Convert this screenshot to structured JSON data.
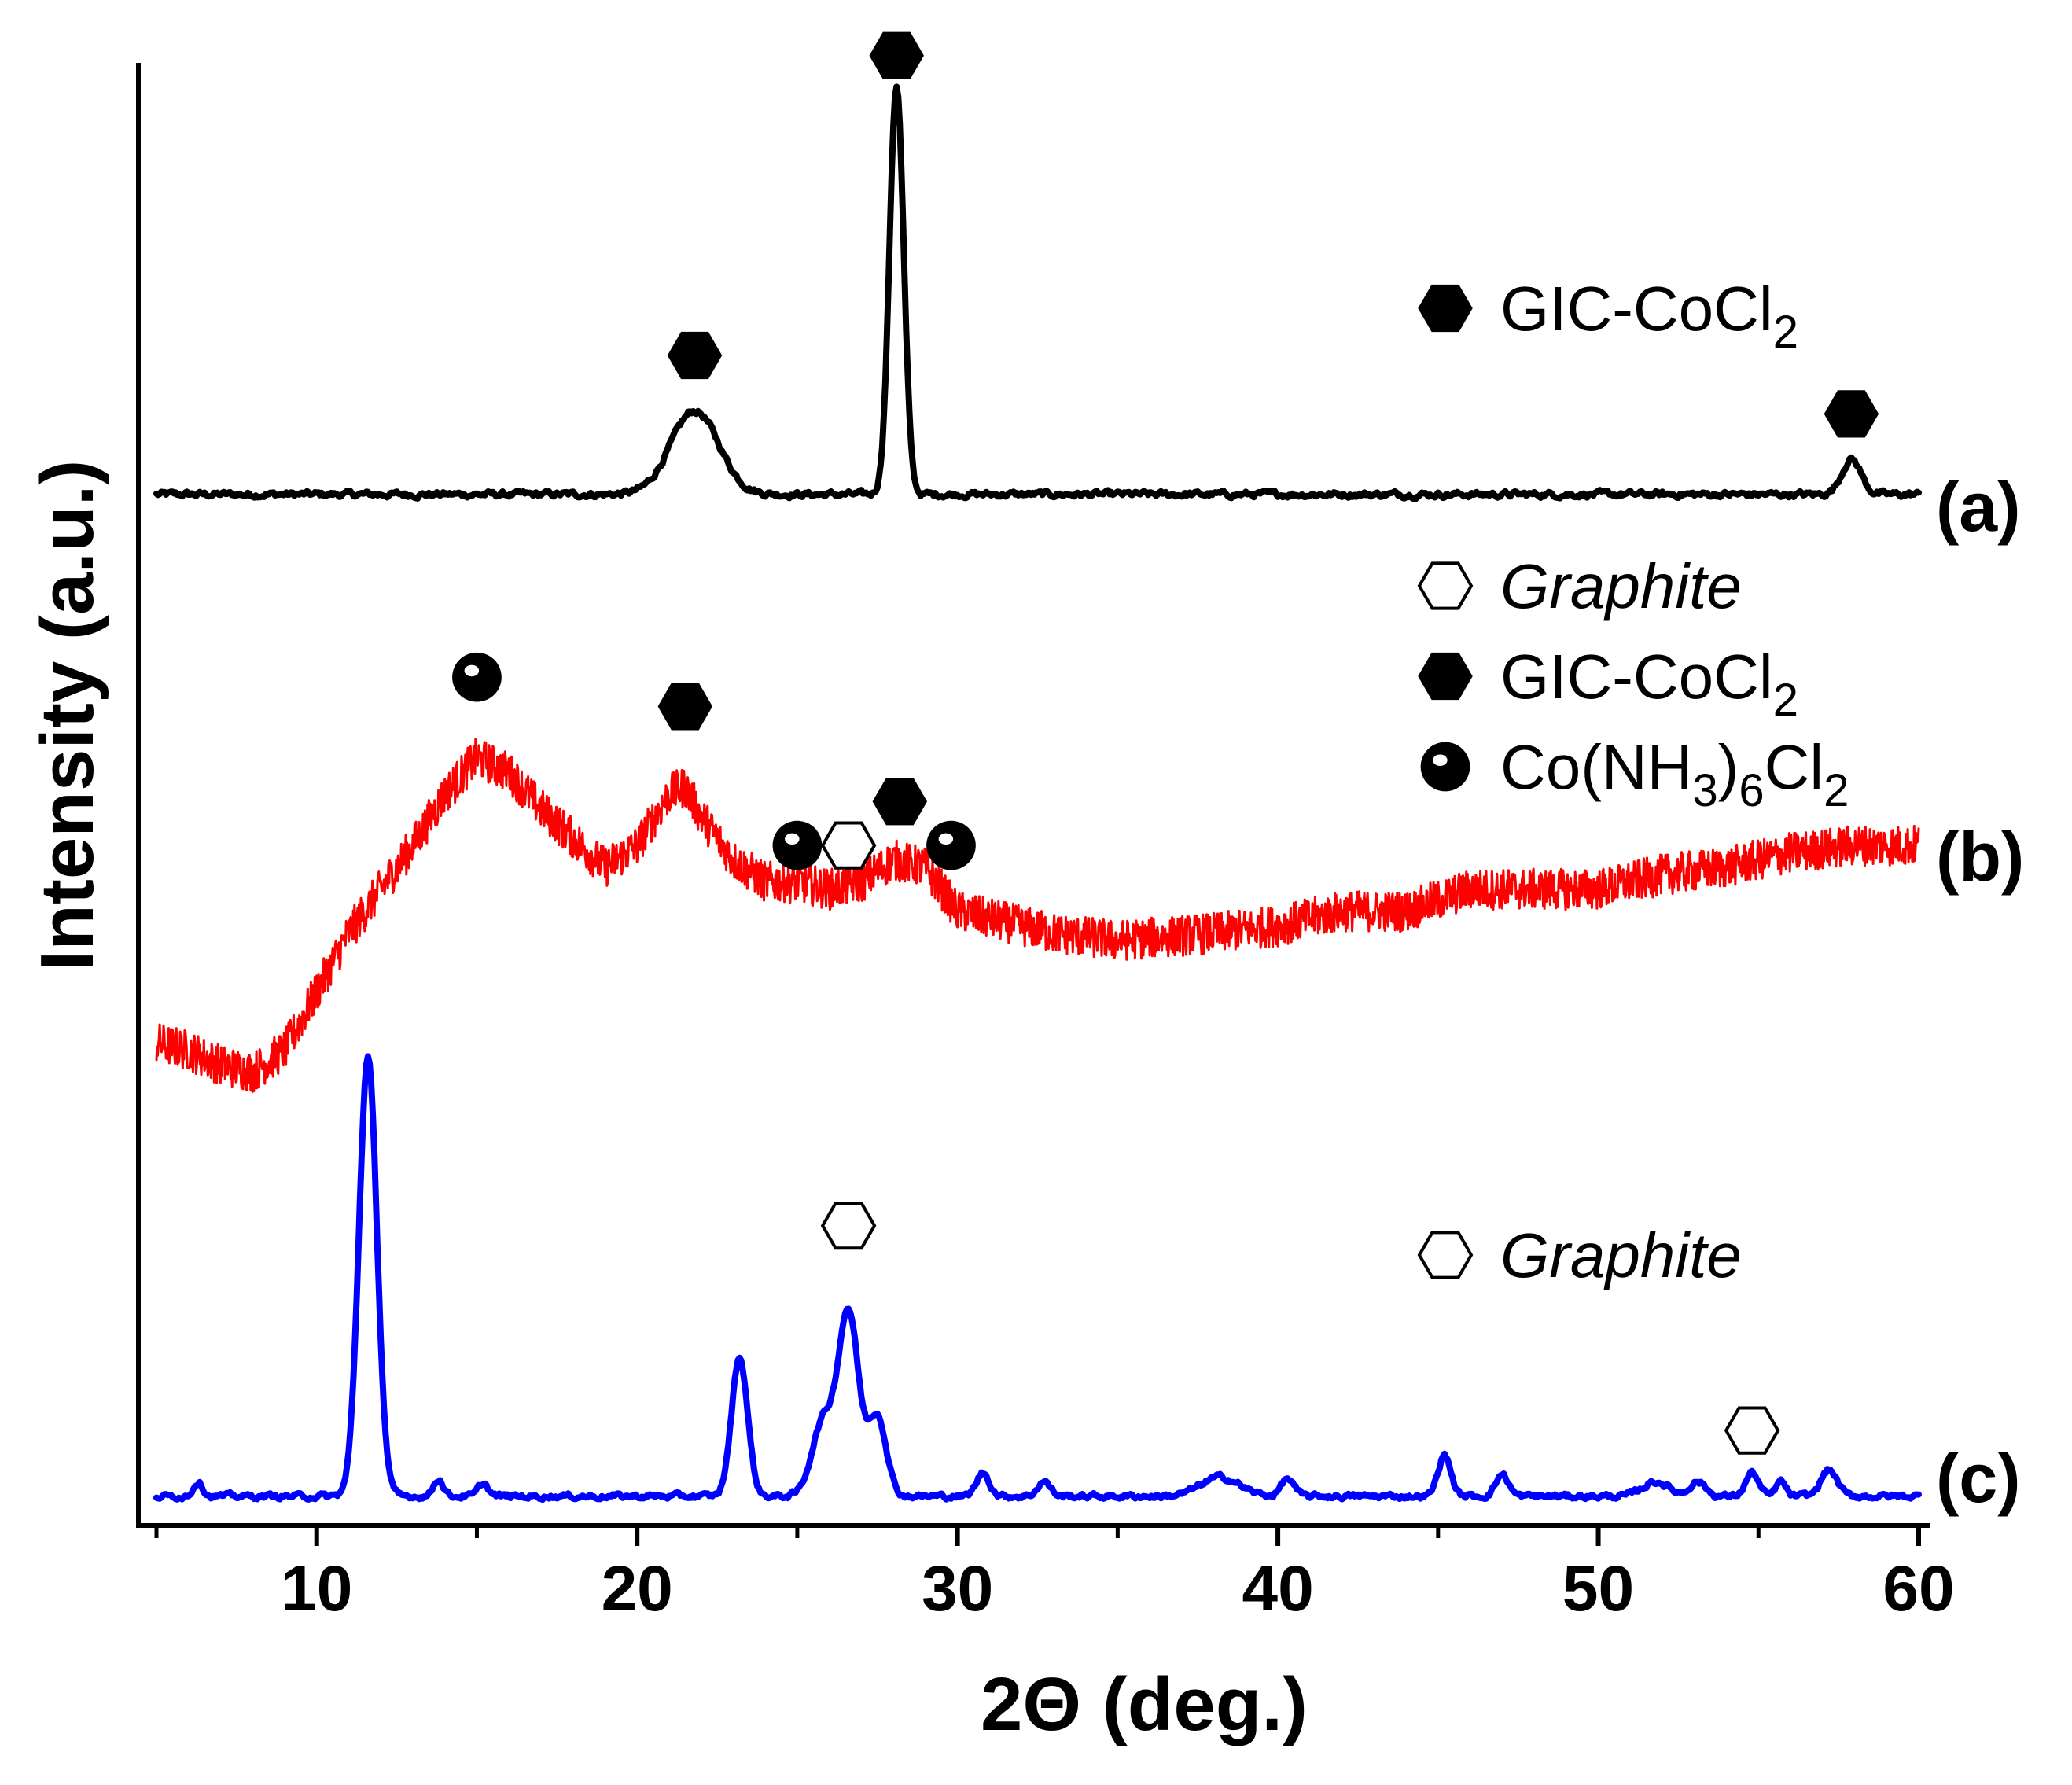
{
  "chart_data": {
    "type": "line",
    "title": "",
    "xlabel": "2Θ (deg.)",
    "ylabel": "Intensity (a.u.)",
    "xlim": [
      5,
      60
    ],
    "xticks": [
      10,
      20,
      30,
      40,
      50,
      60
    ],
    "ylim": [
      0,
      100
    ],
    "yticks_visible": false,
    "grid": false,
    "legend": "none",
    "colors": {
      "a": "#000000",
      "b": "#ff0000",
      "c": "#0000ff",
      "axis": "#000000"
    },
    "marker_types": {
      "filled_hexagon": "GIC-CoCl2",
      "open_hexagon": "Graphite",
      "ball": "Co(NH3)6Cl2"
    },
    "series": [
      {
        "id": "a",
        "name": "(a)",
        "color": "#000000",
        "baseline": 70.5,
        "noise": 0.4,
        "peaks": [
          {
            "x": 21.8,
            "height": 5.7,
            "width": 0.75
          },
          {
            "x": 28.1,
            "height": 28.0,
            "width": 0.22
          },
          {
            "x": 57.9,
            "height": 2.4,
            "width": 0.3
          }
        ],
        "markers": [
          {
            "x": 21.8,
            "y": 80.0,
            "type": "filled_hexagon"
          },
          {
            "x": 28.1,
            "y": 100.5,
            "type": "filled_hexagon"
          },
          {
            "x": 57.9,
            "y": 76.0,
            "type": "filled_hexagon"
          }
        ],
        "legend": [
          {
            "type": "filled_hexagon",
            "text": "GIC-CoCl",
            "sub": "2"
          }
        ]
      },
      {
        "id": "b",
        "name": "(b)",
        "color": "#ff0000",
        "noise": 1.4,
        "profile": [
          [
            5,
            33
          ],
          [
            6,
            32.5
          ],
          [
            7,
            31.5
          ],
          [
            8,
            31.0
          ],
          [
            9,
            32.5
          ],
          [
            10,
            36.5
          ],
          [
            11,
            40.5
          ],
          [
            12,
            43.5
          ],
          [
            13,
            46.5
          ],
          [
            14,
            50.0
          ],
          [
            15,
            52.5
          ],
          [
            16,
            51.5
          ],
          [
            17,
            49.0
          ],
          [
            18,
            47.0
          ],
          [
            19,
            45.0
          ],
          [
            20,
            46.5
          ],
          [
            21,
            50.0
          ],
          [
            21.5,
            50.5
          ],
          [
            22,
            48.5
          ],
          [
            23,
            45.5
          ],
          [
            24,
            44.0
          ],
          [
            25,
            44.0
          ],
          [
            26,
            43.5
          ],
          [
            27,
            44.0
          ],
          [
            28,
            45.5
          ],
          [
            29,
            45.0
          ],
          [
            30,
            42.0
          ],
          [
            31,
            41.5
          ],
          [
            33,
            40.5
          ],
          [
            35,
            40.0
          ],
          [
            38,
            40.5
          ],
          [
            40,
            41.0
          ],
          [
            42,
            42.0
          ],
          [
            44,
            42.0
          ],
          [
            46,
            43.5
          ],
          [
            48,
            43.5
          ],
          [
            50,
            43.5
          ],
          [
            52,
            44.5
          ],
          [
            54,
            45.0
          ],
          [
            56,
            46.0
          ],
          [
            58,
            46.5
          ],
          [
            60,
            46.5
          ]
        ],
        "markers": [
          {
            "x": 15.0,
            "y": 58.0,
            "type": "ball"
          },
          {
            "x": 21.5,
            "y": 56.0,
            "type": "filled_hexagon"
          },
          {
            "x": 25.0,
            "y": 46.5,
            "type": "ball"
          },
          {
            "x": 26.6,
            "y": 46.5,
            "type": "open_hexagon"
          },
          {
            "x": 28.2,
            "y": 49.5,
            "type": "filled_hexagon"
          },
          {
            "x": 29.8,
            "y": 46.5,
            "type": "ball"
          }
        ],
        "legend": [
          {
            "type": "open_hexagon",
            "text": "Graphite",
            "italic": true
          },
          {
            "type": "filled_hexagon",
            "text": "GIC-CoCl",
            "sub": "2"
          },
          {
            "type": "ball",
            "text": "Co(NH",
            "sub": "3",
            "text2": ")",
            "sub2": "6",
            "text3": "Cl",
            "sub3": "2"
          }
        ]
      },
      {
        "id": "c",
        "name": "(c)",
        "color": "#0000ff",
        "baseline": 2.0,
        "noise": 0.35,
        "peaks": [
          {
            "x": 6.3,
            "height": 1.0,
            "width": 0.15
          },
          {
            "x": 11.6,
            "height": 30.0,
            "width": 0.28
          },
          {
            "x": 13.8,
            "height": 1.2,
            "width": 0.15
          },
          {
            "x": 15.2,
            "height": 0.9,
            "width": 0.15
          },
          {
            "x": 23.2,
            "height": 9.5,
            "width": 0.25
          },
          {
            "x": 25.8,
            "height": 5.0,
            "width": 0.35
          },
          {
            "x": 26.6,
            "height": 12.5,
            "width": 0.32
          },
          {
            "x": 27.5,
            "height": 5.5,
            "width": 0.28
          },
          {
            "x": 30.8,
            "height": 1.6,
            "width": 0.2
          },
          {
            "x": 32.7,
            "height": 1.0,
            "width": 0.2
          },
          {
            "x": 38.2,
            "height": 1.3,
            "width": 0.6
          },
          {
            "x": 40.3,
            "height": 1.2,
            "width": 0.2
          },
          {
            "x": 45.2,
            "height": 2.8,
            "width": 0.2
          },
          {
            "x": 47.0,
            "height": 1.5,
            "width": 0.2
          },
          {
            "x": 51.8,
            "height": 1.0,
            "width": 0.4
          },
          {
            "x": 53.1,
            "height": 1.0,
            "width": 0.25
          },
          {
            "x": 54.8,
            "height": 1.6,
            "width": 0.2
          },
          {
            "x": 55.7,
            "height": 1.0,
            "width": 0.15
          },
          {
            "x": 57.2,
            "height": 1.8,
            "width": 0.25
          }
        ],
        "markers": [
          {
            "x": 26.6,
            "y": 20.5,
            "type": "open_hexagon"
          },
          {
            "x": 54.8,
            "y": 6.5,
            "type": "open_hexagon"
          }
        ],
        "legend": [
          {
            "type": "open_hexagon",
            "text": "Graphite",
            "italic": true
          }
        ]
      }
    ]
  }
}
